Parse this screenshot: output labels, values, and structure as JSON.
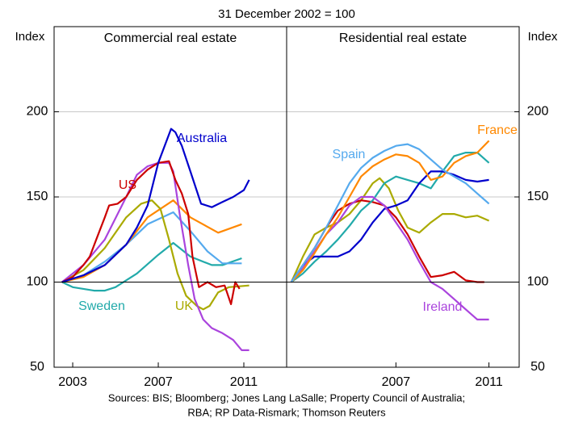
{
  "subtitle": "31 December 2002 = 100",
  "notes": [
    "Sources: BIS; Bloomberg; Jones Lang LaSalle; Property Council of Australia;",
    "RBA; RP Data-Rismark; Thomson Reuters"
  ],
  "chart_data": [
    {
      "type": "line",
      "title": "Commercial real estate",
      "y_label": "Index",
      "xlim": [
        2002.63,
        2013.5
      ],
      "xticks": [
        {
          "value": 2003.5,
          "label": "2003"
        },
        {
          "value": 2007.5,
          "label": "2007"
        },
        {
          "value": 2011.5,
          "label": "2011"
        }
      ],
      "ylim": [
        50,
        250
      ],
      "yticks": [
        50,
        100,
        150,
        200
      ],
      "reference_line": 100,
      "grid": true,
      "series": [
        {
          "name": "Sweden",
          "color": "#22aaaa",
          "x": [
            2003,
            2003.5,
            2004.5,
            2005,
            2005.5,
            2006.5,
            2007.5,
            2008.2,
            2009,
            2010,
            2010.5,
            2011.4
          ],
          "values": [
            100,
            97,
            95,
            95,
            97,
            105,
            116,
            123,
            115,
            110,
            110,
            114
          ]
        },
        {
          "color": "#55aaee",
          "x": [
            2003,
            2004,
            2005,
            2006,
            2007,
            2008.2,
            2009,
            2009.8,
            2010.5,
            2011.4
          ],
          "values": [
            100,
            104,
            112,
            122,
            134,
            141,
            130,
            118,
            111,
            111
          ]
        },
        {
          "color": "#ff8800",
          "x": [
            2003,
            2004,
            2005,
            2006,
            2007,
            2008.2,
            2009,
            2010.3,
            2011.4
          ],
          "values": [
            100,
            103,
            110,
            122,
            138,
            148,
            138,
            129,
            134
          ]
        },
        {
          "name": "UK",
          "color": "#aaaa00",
          "x": [
            2003,
            2004,
            2005,
            2006,
            2006.7,
            2007.2,
            2007.6,
            2008.0,
            2008.4,
            2008.8,
            2009.3,
            2009.6,
            2009.9,
            2010.3,
            2010.8,
            2011.75
          ],
          "values": [
            100,
            107,
            120,
            138,
            146,
            148,
            143,
            125,
            105,
            92,
            86,
            84,
            86,
            94,
            97,
            98
          ]
        },
        {
          "color": "#aa44dd",
          "x": [
            2003,
            2004,
            2005,
            2006,
            2006.5,
            2007,
            2007.5,
            2008.0,
            2008.2,
            2008.5,
            2008.9,
            2009.2,
            2009.6,
            2010,
            2010.5,
            2011,
            2011.4,
            2011.75
          ],
          "values": [
            100,
            110,
            125,
            150,
            163,
            168,
            170,
            170,
            165,
            140,
            110,
            90,
            78,
            73,
            70,
            66,
            60,
            60
          ]
        },
        {
          "name": "US",
          "color": "#cc0000",
          "x": [
            2003,
            2003.5,
            2004,
            2004.3,
            2004.6,
            2005,
            2005.2,
            2005.6,
            2006,
            2006.5,
            2007,
            2007.5,
            2008.0,
            2008.3,
            2008.6,
            2008.9,
            2009.1,
            2009.4,
            2009.8,
            2010.2,
            2010.6,
            2010.9,
            2011.1,
            2011.3
          ],
          "values": [
            100,
            103,
            110,
            115,
            125,
            138,
            145,
            146,
            150,
            160,
            166,
            170,
            171,
            160,
            152,
            140,
            115,
            97,
            100,
            97,
            98,
            87,
            100,
            96
          ]
        },
        {
          "name": "Australia",
          "color": "#0000cc",
          "x": [
            2003,
            2004,
            2005,
            2006,
            2006.5,
            2007,
            2007.5,
            2008.1,
            2008.3,
            2008.6,
            2009,
            2009.5,
            2010,
            2010.5,
            2011,
            2011.5,
            2011.75
          ],
          "values": [
            100,
            104,
            110,
            122,
            132,
            145,
            170,
            190,
            188,
            180,
            165,
            146,
            144,
            147,
            150,
            154,
            160
          ]
        }
      ]
    },
    {
      "type": "line",
      "title": "Residential real estate",
      "y_label": "Index",
      "xlim": [
        2002.8,
        2012.8
      ],
      "xticks": [
        {
          "value": 2007.5,
          "label": "2007"
        },
        {
          "value": 2011.5,
          "label": "2011"
        }
      ],
      "ylim": [
        50,
        250
      ],
      "yticks": [
        50,
        100,
        150,
        200
      ],
      "reference_line": 100,
      "grid": true,
      "series": [
        {
          "color": "#aaaa00",
          "x": [
            2003,
            2003.5,
            2004,
            2004.5,
            2005,
            2005.5,
            2006,
            2006.5,
            2006.8,
            2007.2,
            2007.6,
            2008,
            2008.5,
            2009,
            2009.5,
            2010,
            2010.5,
            2011,
            2011.5
          ],
          "values": [
            100,
            115,
            128,
            132,
            135,
            140,
            148,
            158,
            161,
            155,
            142,
            132,
            129,
            135,
            140,
            140,
            138,
            139,
            136
          ]
        },
        {
          "color": "#cc0000",
          "x": [
            2003,
            2003.5,
            2004,
            2004.5,
            2005,
            2005.5,
            2006,
            2006.5,
            2007,
            2007.5,
            2008,
            2008.5,
            2009,
            2009.5,
            2010,
            2010.5,
            2011,
            2011.3
          ],
          "values": [
            100,
            110,
            120,
            132,
            142,
            146,
            148,
            147,
            145,
            138,
            128,
            115,
            103,
            104,
            106,
            101,
            100,
            100
          ]
        },
        {
          "color": "#22aaaa",
          "x": [
            2003,
            2003.5,
            2004,
            2004.5,
            2005,
            2005.5,
            2006,
            2006.5,
            2007,
            2007.5,
            2008,
            2008.5,
            2009,
            2009.5,
            2010,
            2010.5,
            2011,
            2011.5
          ],
          "values": [
            100,
            105,
            112,
            118,
            125,
            133,
            142,
            148,
            158,
            162,
            160,
            158,
            155,
            165,
            174,
            176,
            176,
            170
          ]
        },
        {
          "color": "#0000cc",
          "x": [
            2003,
            2003.5,
            2004,
            2005,
            2005.5,
            2006,
            2006.5,
            2007,
            2007.5,
            2008,
            2008.5,
            2009,
            2009.5,
            2010,
            2010.5,
            2011,
            2011.5
          ],
          "values": [
            100,
            110,
            115,
            115,
            118,
            125,
            135,
            143,
            145,
            148,
            158,
            165,
            165,
            163,
            160,
            159,
            160
          ]
        },
        {
          "name": "Ireland",
          "color": "#aa44dd",
          "x": [
            2003,
            2003.5,
            2004,
            2004.5,
            2005,
            2005.5,
            2006,
            2006.5,
            2007,
            2007.5,
            2008,
            2008.5,
            2009,
            2009.5,
            2010,
            2010.5,
            2011,
            2011.5
          ],
          "values": [
            100,
            108,
            118,
            128,
            135,
            145,
            150,
            150,
            145,
            135,
            125,
            112,
            100,
            96,
            90,
            84,
            78,
            78
          ]
        },
        {
          "name": "France",
          "color": "#ff8800",
          "x": [
            2003,
            2003.5,
            2004,
            2004.5,
            2005,
            2005.5,
            2006,
            2006.5,
            2007,
            2007.5,
            2008,
            2008.5,
            2009,
            2009.5,
            2010,
            2010.5,
            2011,
            2011.5
          ],
          "values": [
            100,
            107,
            117,
            128,
            138,
            150,
            162,
            168,
            172,
            175,
            174,
            170,
            160,
            162,
            170,
            174,
            176,
            183
          ]
        },
        {
          "name": "Spain",
          "color": "#55aaee",
          "x": [
            2003,
            2003.5,
            2004,
            2004.5,
            2005,
            2005.5,
            2006,
            2006.5,
            2007,
            2007.5,
            2008,
            2008.5,
            2009,
            2009.5,
            2010,
            2010.5,
            2011,
            2011.5
          ],
          "values": [
            100,
            110,
            120,
            132,
            145,
            158,
            167,
            173,
            177,
            180,
            181,
            178,
            172,
            166,
            162,
            158,
            152,
            146
          ]
        }
      ]
    }
  ]
}
